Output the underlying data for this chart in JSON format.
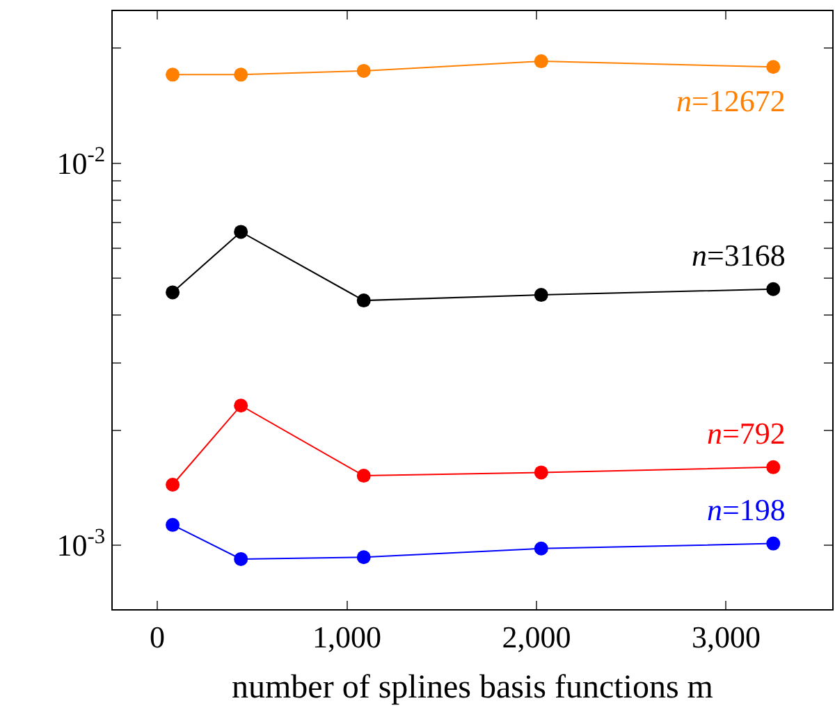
{
  "chart_data": {
    "type": "line",
    "xlabel": "number of splines basis functions m",
    "x": [
      81,
      441,
      1089,
      2025,
      3249
    ],
    "series": [
      {
        "name": "n=12672",
        "color": "#ff8000",
        "values": [
          0.01705,
          0.01705,
          0.01744,
          0.01848,
          0.01786
        ]
      },
      {
        "name": "n=3168",
        "color": "#000000",
        "values": [
          0.00459,
          0.00661,
          0.00437,
          0.00452,
          0.00468
        ]
      },
      {
        "name": "n=792",
        "color": "#ff0000",
        "values": [
          0.00144,
          0.00232,
          0.00152,
          0.00155,
          0.0016
        ]
      },
      {
        "name": "n=198",
        "color": "#0000ff",
        "values": [
          0.00113,
          0.00092,
          0.00093,
          0.00098,
          0.00101
        ]
      }
    ],
    "log": "y",
    "xlim": [
      -235,
      3560
    ],
    "ylim": [
      0.00068,
      0.025
    ],
    "xticks": [
      0,
      {
        "value": 1000,
        "label": "1,000"
      },
      {
        "value": 2000,
        "label": "2,000"
      },
      {
        "value": 3000,
        "label": "3,000"
      }
    ],
    "yticks": [
      {
        "value": 0.001,
        "label": "10$^{-3}$"
      },
      {
        "value": 0.002,
        "label": null
      },
      {
        "value": 0.003,
        "label": null
      },
      {
        "value": 0.004,
        "label": null
      },
      {
        "value": 0.005,
        "label": null
      },
      {
        "value": 0.006,
        "label": null
      },
      {
        "value": 0.007,
        "label": null
      },
      {
        "value": 0.008,
        "label": null
      },
      {
        "value": 0.009,
        "label": null
      },
      {
        "value": 0.01,
        "label": "10$^{-2}$"
      },
      {
        "value": 0.02,
        "label": null
      }
    ],
    "legend": false,
    "marker": "circle",
    "line_style": "solid"
  }
}
